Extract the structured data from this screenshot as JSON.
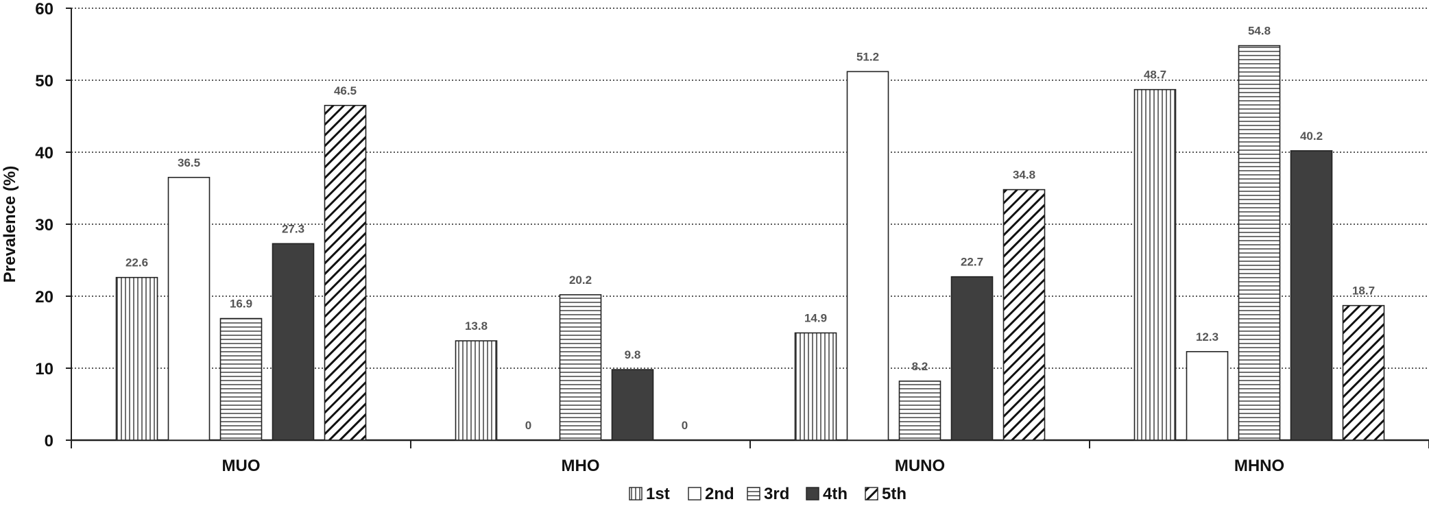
{
  "chart_data": {
    "type": "bar",
    "title": "",
    "xlabel": "",
    "ylabel": "Prevalence (%)",
    "ylim": [
      0,
      60
    ],
    "yticks": [
      0,
      10,
      20,
      30,
      40,
      50,
      60
    ],
    "grid": "horizontal dotted",
    "legend_position": "bottom-center",
    "categories": [
      "MUO",
      "MHO",
      "MUNO",
      "MHNO"
    ],
    "series": [
      {
        "name": "1st",
        "pattern": "vertical-lines",
        "color": "#ffffff",
        "values": [
          22.6,
          13.8,
          14.9,
          48.7
        ],
        "labels": [
          "22.6",
          "13.8",
          "14.9",
          "48.7"
        ]
      },
      {
        "name": "2nd",
        "pattern": "solid",
        "color": "#ffffff",
        "values": [
          36.5,
          0,
          51.2,
          12.3
        ],
        "labels": [
          "36.5",
          "0",
          "51.2",
          "12.3"
        ]
      },
      {
        "name": "3rd",
        "pattern": "horizontal-lines",
        "color": "#ffffff",
        "values": [
          16.9,
          20.2,
          8.2,
          54.8
        ],
        "labels": [
          "16.9",
          "20.2",
          "8.2",
          "54.8"
        ]
      },
      {
        "name": "4th",
        "pattern": "solid",
        "color": "#3f3f3f",
        "values": [
          27.3,
          9.8,
          22.7,
          40.2
        ],
        "labels": [
          "27.3",
          "9.8",
          "22.7",
          "40.2"
        ]
      },
      {
        "name": "5th",
        "pattern": "diagonal-lines",
        "color": "#ffffff",
        "values": [
          46.5,
          0,
          34.8,
          18.7
        ],
        "labels": [
          "46.5",
          "0",
          "34.8",
          "18.7"
        ]
      }
    ]
  }
}
